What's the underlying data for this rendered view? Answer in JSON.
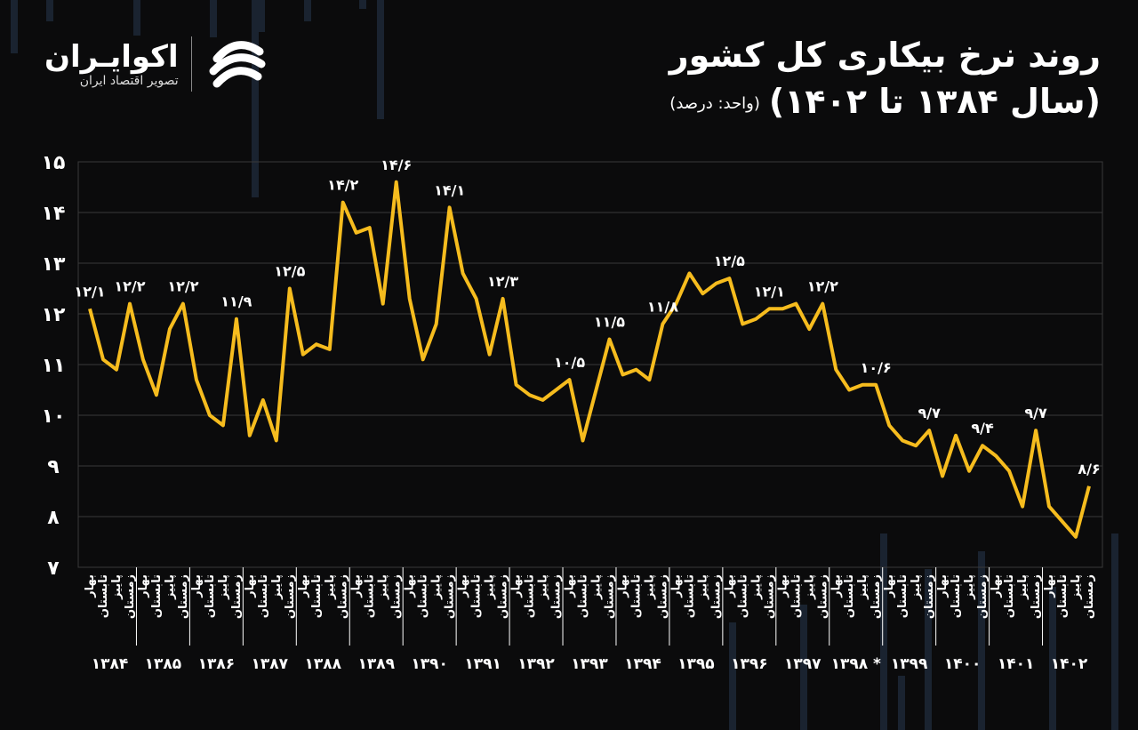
{
  "header": {
    "title": "روند نرخ بیکاری کل کشور",
    "subtitle": "(سال ۱۳۸۴ تا ۱۴۰۲)",
    "unit": "(واحد: درصد)"
  },
  "logo": {
    "name": "اکوایـران",
    "tagline": "تصویر اقتصاد ایران",
    "icon": "ecoiran-logo-icon"
  },
  "colors": {
    "line": "#f6bc1e",
    "grid": "#3a3a3a",
    "background": "#0b0b0c",
    "text": "#ffffff"
  },
  "chart_data": {
    "type": "line",
    "title": "روند نرخ بیکاری کل کشور",
    "ylim": [
      7,
      15
    ],
    "y_ticks": [
      "۷",
      "۸",
      "۹",
      "۱۰",
      "۱۱",
      "۱۲",
      "۱۳",
      "۱۴",
      "۱۵"
    ],
    "grid": true,
    "season_labels": [
      "بهار",
      "تابستان",
      "پاییز",
      "زمستان"
    ],
    "years": [
      "۱۳۸۴",
      "۱۳۸۵",
      "۱۳۸۶",
      "۱۳۸۷",
      "۱۳۸۸",
      "۱۳۸۹",
      "۱۳۹۰",
      "۱۳۹۱",
      "۱۳۹۲",
      "۱۳۹۳",
      "۱۳۹۴",
      "۱۳۹۵",
      "۱۳۹۶",
      "۱۳۹۷",
      "۱۳۹۸ *",
      "۱۳۹۹",
      "۱۴۰۰",
      "۱۴۰۱",
      "۱۴۰۲"
    ],
    "values": [
      12.1,
      11.1,
      10.9,
      12.2,
      11.1,
      10.4,
      11.7,
      12.2,
      10.7,
      10.0,
      9.8,
      11.9,
      9.6,
      10.3,
      9.5,
      12.5,
      11.2,
      11.4,
      11.3,
      14.2,
      13.6,
      13.7,
      12.2,
      14.6,
      12.3,
      11.1,
      11.8,
      14.1,
      12.8,
      12.3,
      11.2,
      12.3,
      10.6,
      10.4,
      10.3,
      10.5,
      10.7,
      9.5,
      10.5,
      11.5,
      10.8,
      10.9,
      10.7,
      11.8,
      12.2,
      12.8,
      12.4,
      12.6,
      12.7,
      11.8,
      11.9,
      12.1,
      12.1,
      12.2,
      11.7,
      12.2,
      10.9,
      10.5,
      10.6,
      10.6,
      9.8,
      9.5,
      9.4,
      9.7,
      8.8,
      9.6,
      8.9,
      9.4,
      9.2,
      8.9,
      8.2,
      9.7,
      8.2,
      7.9,
      7.6,
      8.6
    ],
    "data_labels": [
      {
        "index": 0,
        "text": "۱۲/۱"
      },
      {
        "index": 3,
        "text": "۱۲/۲"
      },
      {
        "index": 7,
        "text": "۱۲/۲"
      },
      {
        "index": 11,
        "text": "۱۱/۹"
      },
      {
        "index": 15,
        "text": "۱۲/۵"
      },
      {
        "index": 19,
        "text": "۱۴/۲"
      },
      {
        "index": 23,
        "text": "۱۴/۶"
      },
      {
        "index": 27,
        "text": "۱۴/۱"
      },
      {
        "index": 31,
        "text": "۱۲/۳"
      },
      {
        "index": 36,
        "text": "۱۰/۵"
      },
      {
        "index": 39,
        "text": "۱۱/۵"
      },
      {
        "index": 43,
        "text": "۱۱/۸"
      },
      {
        "index": 48,
        "text": "۱۲/۵"
      },
      {
        "index": 51,
        "text": "۱۲/۱"
      },
      {
        "index": 55,
        "text": "۱۲/۲"
      },
      {
        "index": 59,
        "text": "۱۰/۶"
      },
      {
        "index": 63,
        "text": "۹/۷"
      },
      {
        "index": 67,
        "text": "۹/۴"
      },
      {
        "index": 71,
        "text": "۹/۷"
      },
      {
        "index": 75,
        "text": "۸/۶"
      }
    ]
  }
}
